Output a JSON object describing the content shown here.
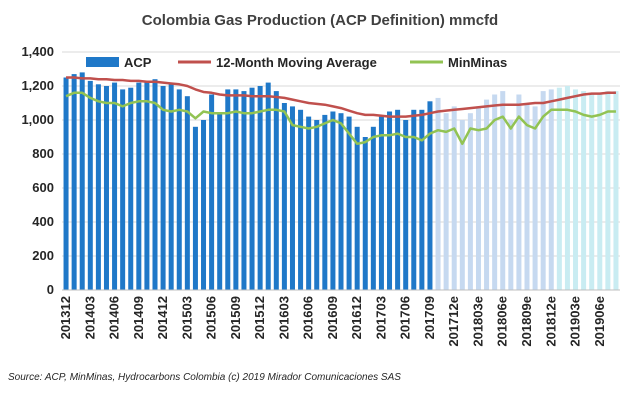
{
  "chart_data": {
    "type": "bar",
    "title": "Colombia Gas Production (ACP Definition) mmcfd",
    "source": "Source:  ACP, MinMinas, Hydrocarbons Colombia (c) 2019 Mirador Comunicaciones SAS",
    "ylim": [
      0,
      1400
    ],
    "yticks": [
      "0",
      "200",
      "400",
      "600",
      "800",
      "1,000",
      "1,200",
      "1,400"
    ],
    "grid": true,
    "legend_position": "top",
    "colors": {
      "acp_actual": "#1f78c8",
      "acp_estimate_a": "#c6d9f0",
      "acp_estimate_b": "#c9ecf2",
      "moving_average": "#c0504d",
      "minminas": "#92c353",
      "grid": "#d9d9d9",
      "axis": "#bfbfbf"
    },
    "x_tick_labels": [
      {
        "index": 0,
        "label": "201312"
      },
      {
        "index": 3,
        "label": "201403"
      },
      {
        "index": 6,
        "label": "201406"
      },
      {
        "index": 9,
        "label": "201409"
      },
      {
        "index": 12,
        "label": "201412"
      },
      {
        "index": 15,
        "label": "201503"
      },
      {
        "index": 18,
        "label": "201506"
      },
      {
        "index": 21,
        "label": "201509"
      },
      {
        "index": 24,
        "label": "201512"
      },
      {
        "index": 27,
        "label": "201603"
      },
      {
        "index": 30,
        "label": "201606"
      },
      {
        "index": 33,
        "label": "201609"
      },
      {
        "index": 36,
        "label": "201612"
      },
      {
        "index": 39,
        "label": "201703"
      },
      {
        "index": 42,
        "label": "201706"
      },
      {
        "index": 45,
        "label": "201709"
      },
      {
        "index": 48,
        "label": "201712e"
      },
      {
        "index": 51,
        "label": "201803e"
      },
      {
        "index": 54,
        "label": "201806e"
      },
      {
        "index": 57,
        "label": "201809e"
      },
      {
        "index": 60,
        "label": "201812e"
      },
      {
        "index": 63,
        "label": "201903e"
      },
      {
        "index": 66,
        "label": "201906e"
      }
    ],
    "estimate_start_index": 46,
    "estimate_light_start_index": 61,
    "series": [
      {
        "name": "ACP",
        "kind": "bar",
        "values": [
          1250,
          1270,
          1280,
          1230,
          1210,
          1200,
          1220,
          1180,
          1190,
          1220,
          1230,
          1240,
          1200,
          1210,
          1180,
          1140,
          960,
          1000,
          1150,
          1040,
          1180,
          1180,
          1170,
          1190,
          1200,
          1220,
          1170,
          1100,
          1080,
          1060,
          1020,
          1000,
          1030,
          1050,
          1040,
          1020,
          960,
          900,
          960,
          1020,
          1050,
          1060,
          1000,
          1060,
          1060,
          1110,
          1130,
          1040,
          1080,
          1000,
          1040,
          1080,
          1120,
          1150,
          1170,
          1000,
          1150,
          1100,
          1080,
          1170,
          1180,
          1190,
          1200,
          1180,
          1170,
          1160,
          1160,
          1170,
          1170
        ]
      },
      {
        "name": "12-Month Moving Average",
        "kind": "line",
        "values": [
          1250,
          1250,
          1245,
          1245,
          1240,
          1240,
          1235,
          1235,
          1230,
          1230,
          1225,
          1225,
          1220,
          1215,
          1210,
          1200,
          1180,
          1165,
          1160,
          1150,
          1145,
          1145,
          1145,
          1140,
          1140,
          1140,
          1135,
          1130,
          1120,
          1110,
          1100,
          1095,
          1090,
          1080,
          1070,
          1055,
          1040,
          1030,
          1030,
          1025,
          1020,
          1020,
          1020,
          1025,
          1030,
          1040,
          1050,
          1055,
          1060,
          1065,
          1070,
          1075,
          1080,
          1085,
          1090,
          1090,
          1090,
          1095,
          1100,
          1100,
          1110,
          1120,
          1130,
          1140,
          1150,
          1155,
          1155,
          1160,
          1160
        ]
      },
      {
        "name": "MinMinas",
        "kind": "line",
        "values": [
          1140,
          1160,
          1160,
          1130,
          1110,
          1100,
          1100,
          1080,
          1100,
          1110,
          1110,
          1100,
          1060,
          1050,
          1060,
          1050,
          1010,
          1050,
          1040,
          1040,
          1040,
          1050,
          1040,
          1040,
          1050,
          1060,
          1060,
          1050,
          970,
          960,
          950,
          960,
          980,
          1000,
          980,
          920,
          860,
          870,
          900,
          910,
          910,
          920,
          900,
          900,
          880,
          920,
          940,
          930,
          950,
          860,
          950,
          940,
          950,
          1000,
          1020,
          950,
          1020,
          970,
          950,
          1020,
          1060,
          1060,
          1060,
          1050,
          1030,
          1020,
          1030,
          1050,
          1050
        ]
      }
    ]
  }
}
